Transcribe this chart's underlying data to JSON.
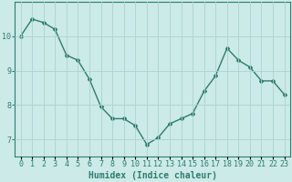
{
  "x": [
    0,
    1,
    2,
    3,
    4,
    5,
    6,
    7,
    8,
    9,
    10,
    11,
    12,
    13,
    14,
    15,
    16,
    17,
    18,
    19,
    20,
    21,
    22,
    23
  ],
  "y": [
    10.0,
    10.5,
    10.4,
    10.2,
    9.45,
    9.3,
    8.75,
    7.95,
    7.6,
    7.6,
    7.4,
    6.85,
    7.05,
    7.45,
    7.6,
    7.75,
    8.4,
    8.85,
    9.65,
    9.3,
    9.1,
    8.7,
    8.7,
    8.3
  ],
  "line_color": "#2e7d6e",
  "marker": "D",
  "marker_size": 2.0,
  "bg_color": "#cceae7",
  "grid_color": "#aad4d0",
  "xlabel": "Humidex (Indice chaleur)",
  "ylim": [
    6.5,
    11.0
  ],
  "xlim": [
    -0.5,
    23.5
  ],
  "yticks": [
    7,
    8,
    9,
    10
  ],
  "xtick_labels": [
    "0",
    "1",
    "2",
    "3",
    "4",
    "5",
    "6",
    "7",
    "8",
    "9",
    "10",
    "11",
    "12",
    "13",
    "14",
    "15",
    "16",
    "17",
    "18",
    "19",
    "20",
    "21",
    "22",
    "23"
  ],
  "xlabel_fontsize": 7,
  "tick_fontsize": 6,
  "line_width": 1.0
}
